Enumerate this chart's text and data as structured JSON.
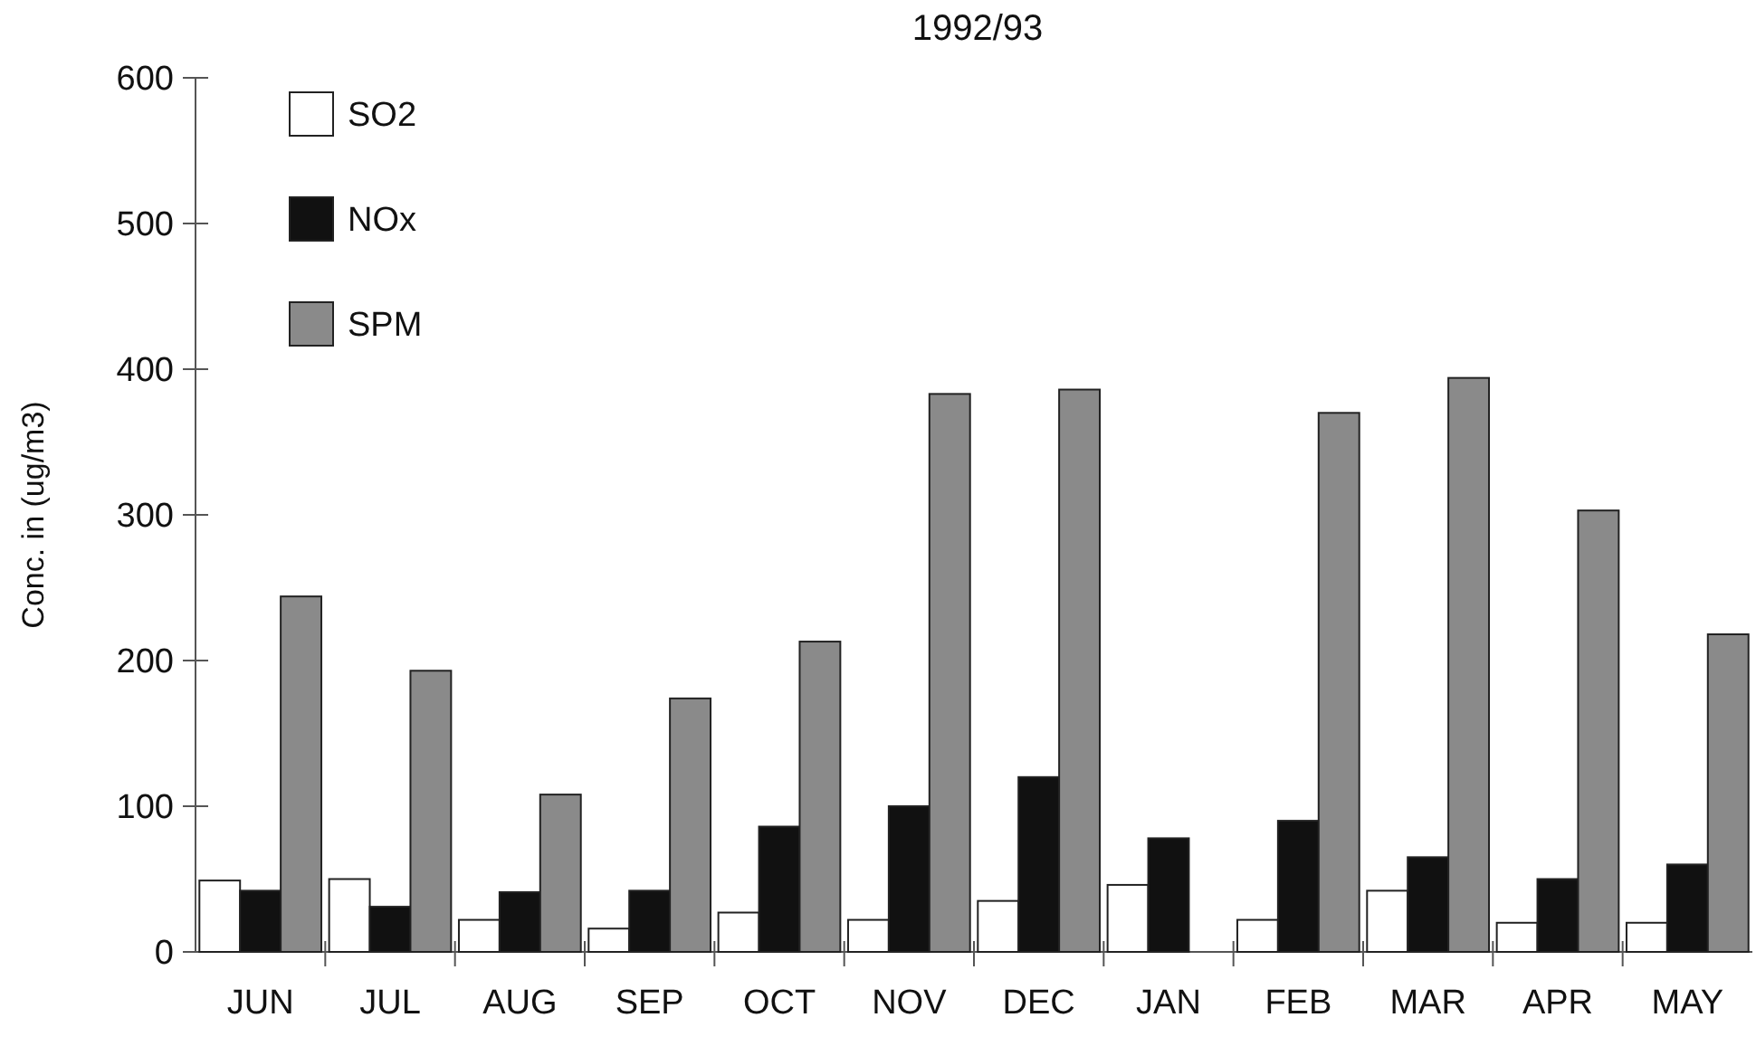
{
  "chart_data": {
    "type": "bar",
    "title": "1992/93",
    "ylabel": "Conc. in (ug/m3)",
    "categories": [
      "JUN",
      "JUL",
      "AUG",
      "SEP",
      "OCT",
      "NOV",
      "DEC",
      "JAN",
      "FEB",
      "MAR",
      "APR",
      "MAY"
    ],
    "series": [
      {
        "name": "SO2",
        "color": "#ffffff",
        "values": [
          49,
          50,
          22,
          16,
          27,
          22,
          35,
          46,
          22,
          42,
          20,
          20
        ]
      },
      {
        "name": "NOx",
        "color": "#111111",
        "values": [
          42,
          31,
          41,
          42,
          86,
          100,
          120,
          78,
          90,
          65,
          50,
          60
        ]
      },
      {
        "name": "SPM",
        "color": "#8a8a8a",
        "values": [
          244,
          193,
          108,
          174,
          213,
          383,
          386,
          null,
          370,
          394,
          303,
          218
        ]
      }
    ],
    "ylim": [
      0,
      600
    ],
    "yticks": [
      0,
      100,
      200,
      300,
      400,
      500,
      600
    ],
    "legend": "top left"
  }
}
